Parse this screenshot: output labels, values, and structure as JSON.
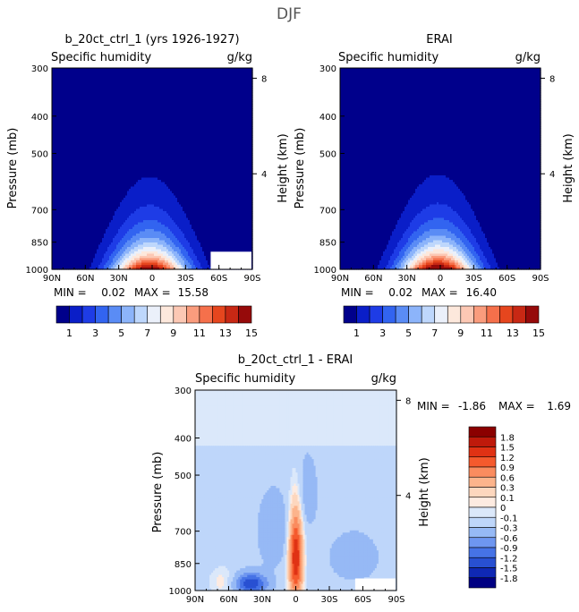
{
  "figure_title": "DJF",
  "chart_data": [
    {
      "type": "heatmap",
      "title": "b_20ct_ctrl_1 (yrs 1926-1927)",
      "subtitle_left": "Specific humidity",
      "subtitle_right": "g/kg",
      "ylabel": "Pressure (mb)",
      "ylabel_right": "Height (km)",
      "x_ticks": [
        "90N",
        "60N",
        "30N",
        "0",
        "30S",
        "60S",
        "90S"
      ],
      "x_values": [
        90,
        60,
        30,
        0,
        -30,
        -60,
        -90
      ],
      "y_ticks": [
        "300",
        "400",
        "500",
        "700",
        "850",
        "1000"
      ],
      "y_values": [
        300,
        400,
        500,
        700,
        850,
        1000
      ],
      "right_ticks": [
        "8",
        "4"
      ],
      "right_values": [
        8,
        4
      ],
      "min_label": "MIN =",
      "min_value": "0.02",
      "max_label": "MAX =",
      "max_value": "15.58",
      "peak_q": 15.58,
      "colorbar_labels": [
        "1",
        "3",
        "5",
        "7",
        "9",
        "11",
        "13",
        "15"
      ]
    },
    {
      "type": "heatmap",
      "title": "ERAI",
      "subtitle_left": "Specific humidity",
      "subtitle_right": "g/kg",
      "ylabel": "Pressure (mb)",
      "ylabel_right": "Height (km)",
      "x_ticks": [
        "90N",
        "60N",
        "30N",
        "0",
        "30S",
        "60S",
        "90S"
      ],
      "x_values": [
        90,
        60,
        30,
        0,
        -30,
        -60,
        -90
      ],
      "y_ticks": [
        "300",
        "400",
        "500",
        "700",
        "850",
        "1000"
      ],
      "y_values": [
        300,
        400,
        500,
        700,
        850,
        1000
      ],
      "right_ticks": [
        "8",
        "4"
      ],
      "right_values": [
        8,
        4
      ],
      "min_label": "MIN =",
      "min_value": "0.02",
      "max_label": "MAX =",
      "max_value": "16.40",
      "peak_q": 16.4,
      "colorbar_labels": [
        "1",
        "3",
        "5",
        "7",
        "9",
        "11",
        "13",
        "15"
      ]
    },
    {
      "type": "heatmap",
      "title": "b_20ct_ctrl_1 - ERAI",
      "subtitle_left": "Specific humidity",
      "subtitle_right": "g/kg",
      "ylabel": "Pressure (mb)",
      "ylabel_right": "Height (km)",
      "x_ticks": [
        "90N",
        "60N",
        "30N",
        "0",
        "30S",
        "60S",
        "90S"
      ],
      "x_values": [
        90,
        60,
        30,
        0,
        -30,
        -60,
        -90
      ],
      "y_ticks": [
        "300",
        "400",
        "500",
        "700",
        "850",
        "1000"
      ],
      "y_values": [
        300,
        400,
        500,
        700,
        850,
        1000
      ],
      "right_ticks": [
        "8",
        "4"
      ],
      "right_values": [
        8,
        4
      ],
      "min_label": "MIN =",
      "min_value": "-1.86",
      "max_label": "MAX =",
      "max_value": "1.69",
      "colorbar_labels": [
        "1.8",
        "1.5",
        "1.2",
        "0.9",
        "0.6",
        "0.3",
        "0.1",
        "0",
        "-0.1",
        "-0.3",
        "-0.6",
        "-0.9",
        "-1.2",
        "-1.5",
        "-1.8"
      ]
    }
  ],
  "colors": {
    "abs_scale": [
      "#00008b",
      "#0a1ec8",
      "#1e3ce6",
      "#3264f0",
      "#5a8cf5",
      "#8cb4fa",
      "#bed7fc",
      "#ebf0fa",
      "#fde8dc",
      "#fcc8b4",
      "#fa9c7d",
      "#f5704b",
      "#e6461e",
      "#c82814",
      "#960a0a"
    ],
    "diff_scale": [
      "#8b0000",
      "#bf1a0b",
      "#e03214",
      "#f55a2d",
      "#fa8c5f",
      "#fcb48c",
      "#fdd7be",
      "#fdebe1",
      "#dbe8fa",
      "#bed6fa",
      "#96b9f5",
      "#6e96f0",
      "#4673e6",
      "#2850d2",
      "#0f28b4",
      "#000082"
    ]
  }
}
